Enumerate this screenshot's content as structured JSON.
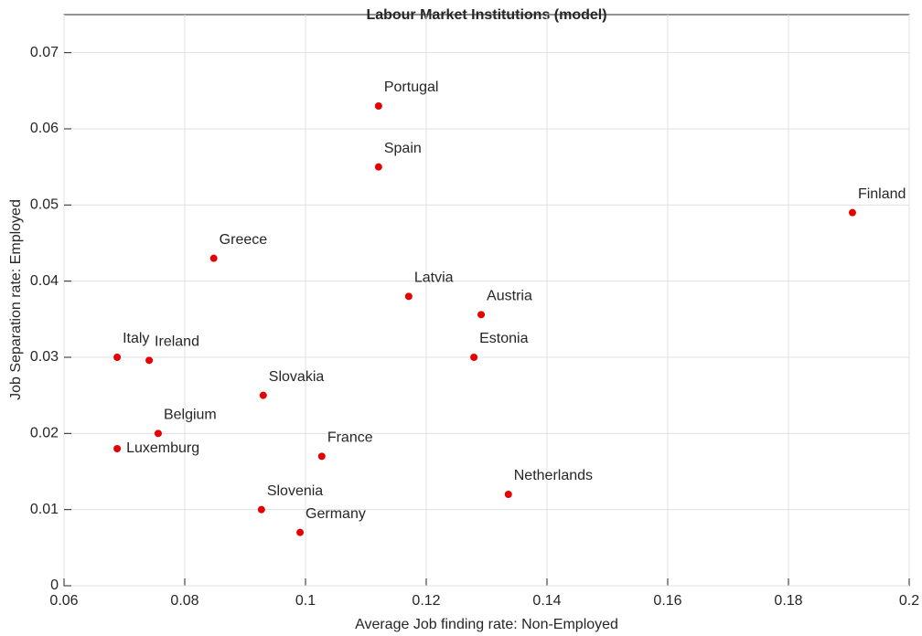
{
  "chart_data": {
    "type": "scatter",
    "title": "Labour Market Institutions (model)",
    "x_label": "Average Job finding rate: Non-Employed",
    "y_label": "Job Separation rate: Employed",
    "labels": [
      "Portugal",
      "Spain",
      "Finland",
      "Greece",
      "Latvia",
      "Austria",
      "Estonia",
      "Italy",
      "Ireland",
      "Slovakia",
      "Belgium",
      "Luxemburg",
      "France",
      "Netherlands",
      "Slovenia",
      "Germany"
    ],
    "x": [
      0.1121,
      0.1121,
      0.1906,
      0.0848,
      0.1171,
      0.1291,
      0.1279,
      0.0688,
      0.0741,
      0.093,
      0.0756,
      0.0688,
      0.1027,
      0.1336,
      0.0927,
      0.0991
    ],
    "values": [
      0.063,
      0.055,
      0.049,
      0.043,
      0.038,
      0.0356,
      0.03,
      0.03,
      0.0296,
      0.025,
      0.02,
      0.018,
      0.017,
      0.012,
      0.01,
      0.007
    ],
    "color": "#e60000",
    "xlim": [
      0.06,
      0.2
    ],
    "xticks": [
      0.06,
      0.08,
      0.1,
      0.12,
      0.14,
      0.16,
      0.18,
      0.2
    ],
    "ylim": [
      0,
      0.075
    ],
    "yticks": [
      0,
      0.01,
      0.02,
      0.03,
      0.04,
      0.05,
      0.06,
      0.07
    ],
    "grid": true
  }
}
